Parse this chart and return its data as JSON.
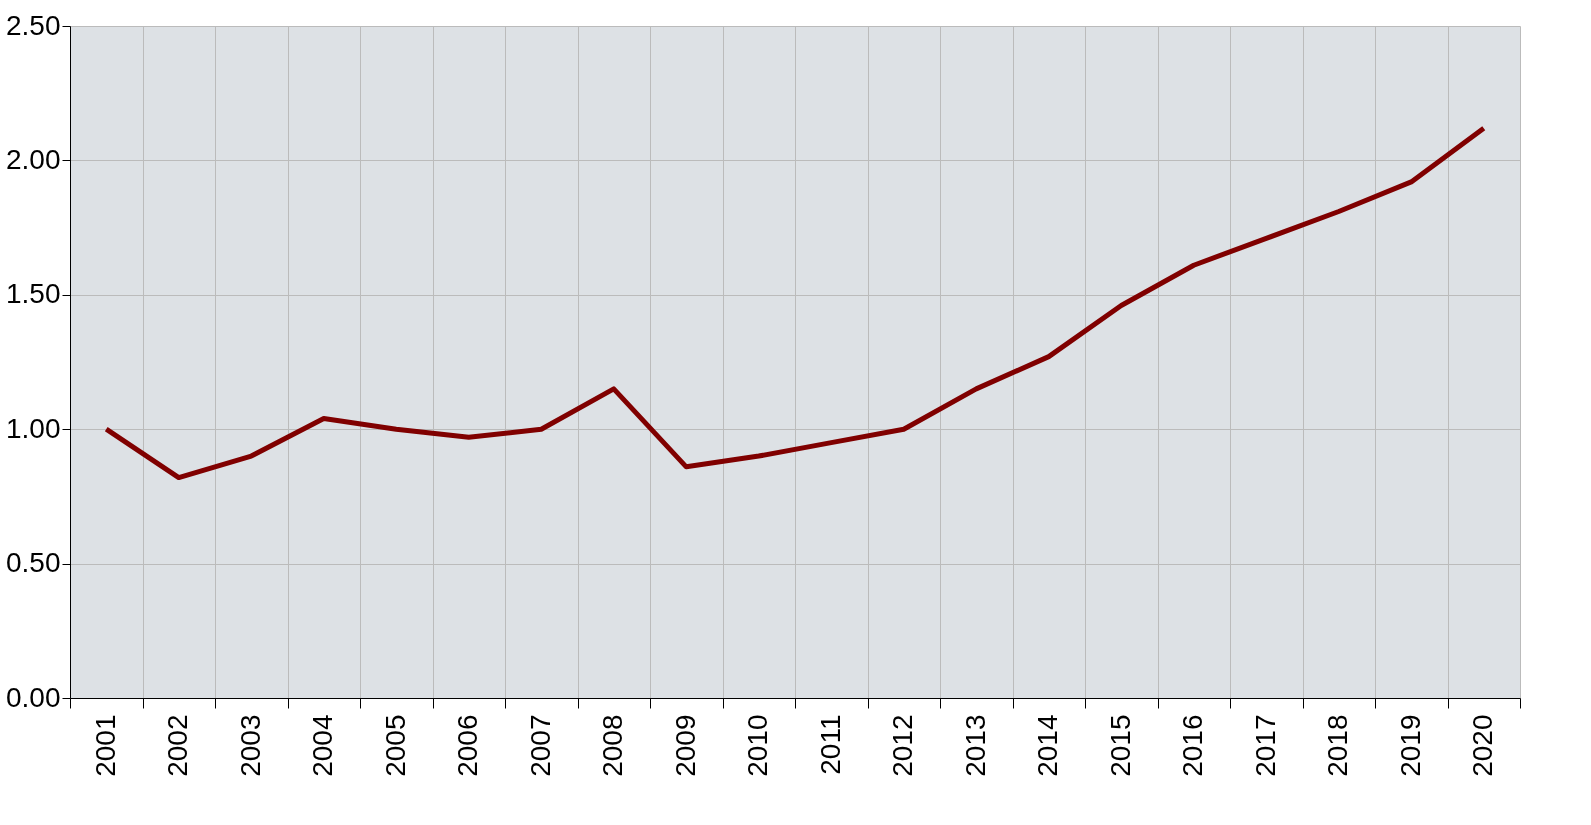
{
  "chart_data": {
    "type": "line",
    "categories": [
      "2001",
      "2002",
      "2003",
      "2004",
      "2005",
      "2006",
      "2007",
      "2008",
      "2009",
      "2010",
      "2011",
      "2012",
      "2013",
      "2014",
      "2015",
      "2016",
      "2017",
      "2018",
      "2019",
      "2020"
    ],
    "series": [
      {
        "color": "#800000",
        "values": [
          1.0,
          0.82,
          0.9,
          1.04,
          1.0,
          0.97,
          1.0,
          1.15,
          0.86,
          0.9,
          0.95,
          1.0,
          1.15,
          1.27,
          1.46,
          1.61,
          1.71,
          1.81,
          1.92,
          2.12
        ]
      }
    ],
    "ylim": [
      0,
      2.5
    ],
    "yticks": [
      {
        "value": 0,
        "label": "0.00"
      },
      {
        "value": 0.5,
        "label": "0.50"
      },
      {
        "value": 1,
        "label": "1.00"
      },
      {
        "value": 1.5,
        "label": "1.50"
      },
      {
        "value": 2,
        "label": "2.00"
      },
      {
        "value": 2.5,
        "label": "2.50"
      }
    ],
    "grid": true,
    "marker": "none",
    "line_style": "solid"
  }
}
